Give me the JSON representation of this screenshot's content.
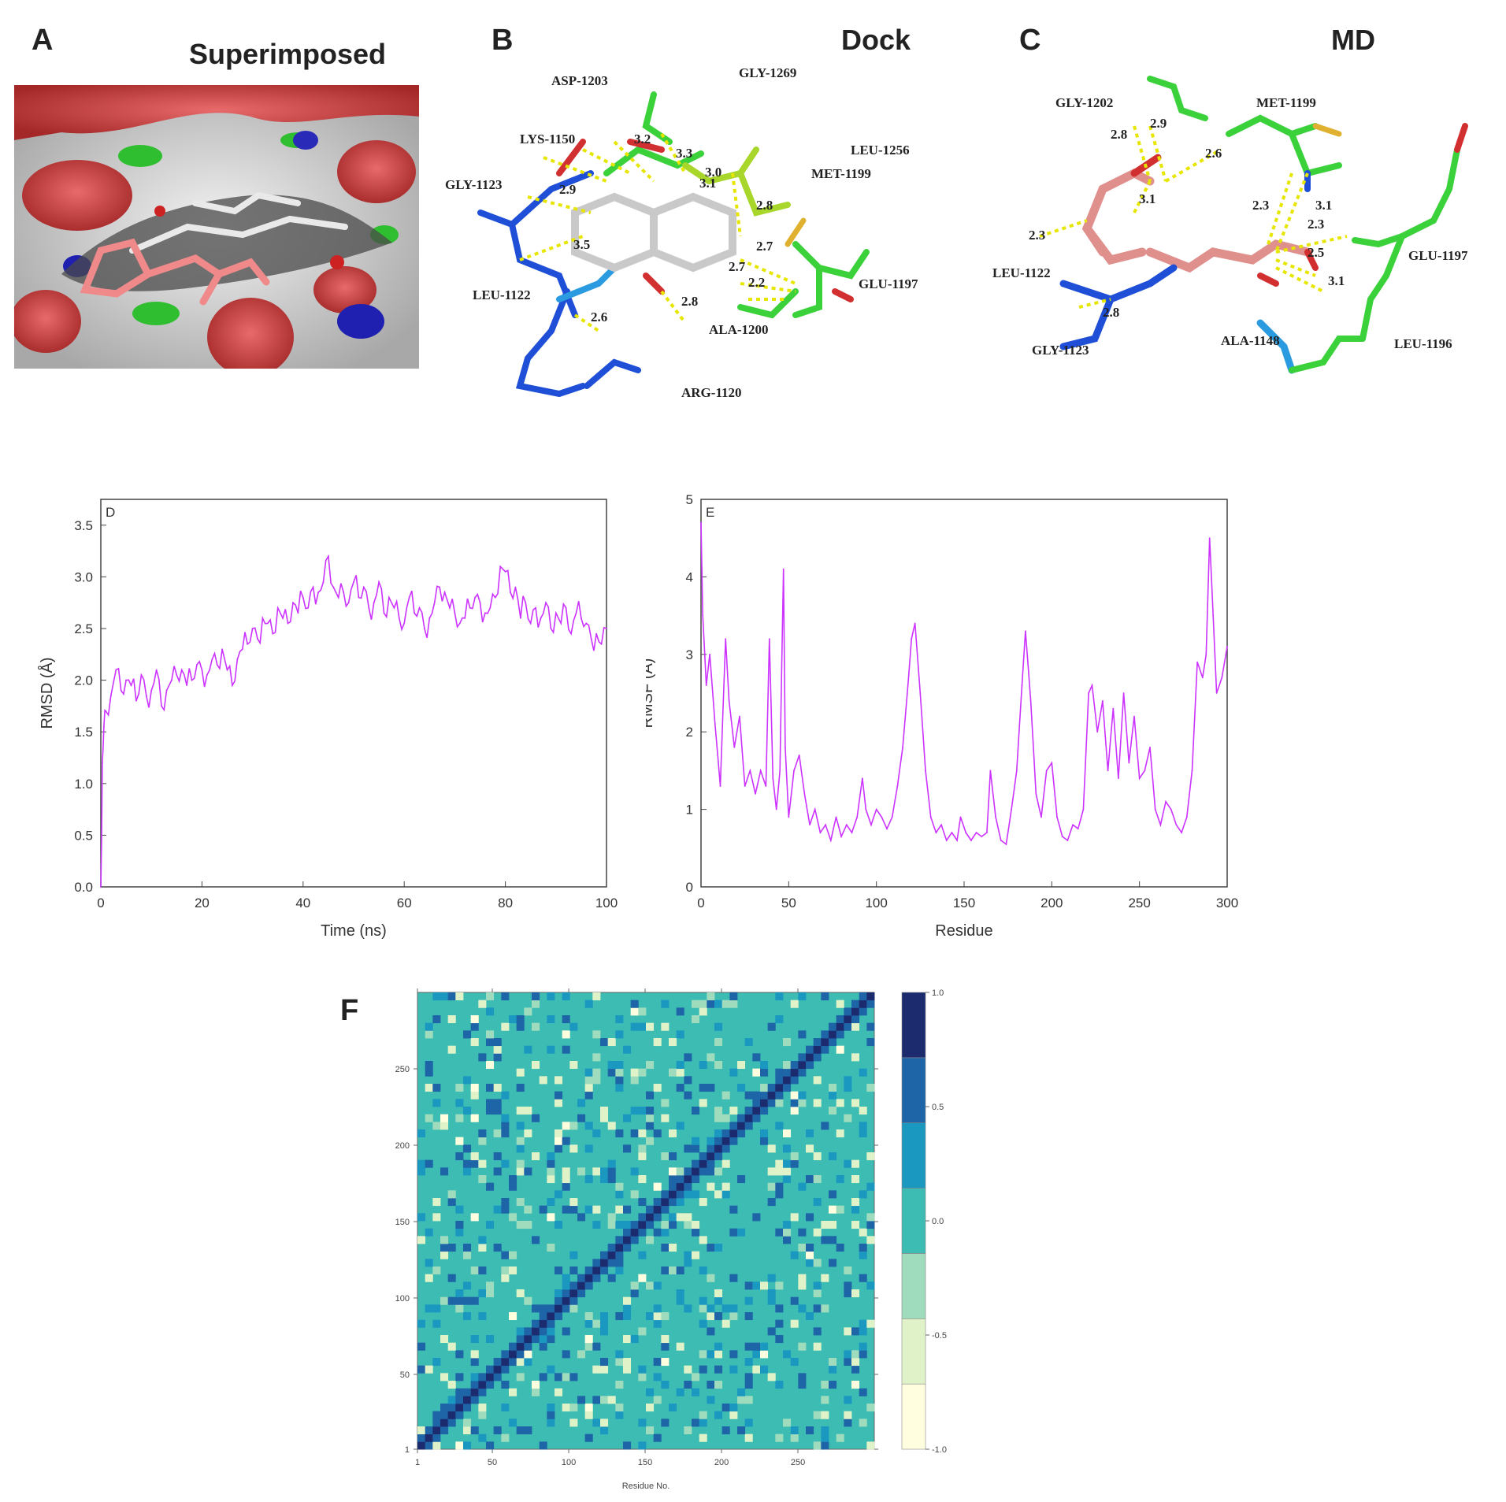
{
  "panels": {
    "a": {
      "letter": "A",
      "title": "Superimposed"
    },
    "b": {
      "letter": "B",
      "title": "Dock",
      "residues": [
        "ASP-1203",
        "GLY-1269",
        "LYS-1150",
        "LEU-1256",
        "GLY-1123",
        "MET-1199",
        "LEU-1122",
        "GLU-1197",
        "ALA-1200",
        "ARG-1120"
      ],
      "distances": [
        "3.2",
        "3.3",
        "3.0",
        "3.1",
        "2.9",
        "2.8",
        "3.5",
        "2.7",
        "2.7",
        "2.2",
        "2.8",
        "2.6"
      ]
    },
    "c": {
      "letter": "C",
      "title": "MD",
      "residues": [
        "GLY-1202",
        "MET-1199",
        "GLU-1197",
        "LEU-1122",
        "GLY-1123",
        "ALA-1148",
        "LEU-1196"
      ],
      "distances": [
        "2.8",
        "2.9",
        "2.6",
        "3.1",
        "2.3",
        "2.3",
        "3.1",
        "2.3",
        "2.5",
        "3.1",
        "2.8"
      ]
    },
    "f": {
      "letter": "F"
    }
  },
  "chart_data": [
    {
      "type": "line",
      "panel": "D",
      "xlabel": "Time (ns)",
      "ylabel": "RMSD (Å)",
      "xlim": [
        0,
        100
      ],
      "ylim": [
        0,
        3.75
      ],
      "xticks": [
        "0",
        "20",
        "40",
        "60",
        "80",
        "100"
      ],
      "yticks": [
        "0.0",
        "0.5",
        "1.0",
        "1.5",
        "2.0",
        "2.5",
        "3.0",
        "3.5"
      ],
      "color": "#cc33ff",
      "x": [
        0,
        0.3,
        0.6,
        1,
        2,
        3,
        4,
        5,
        6,
        7,
        8,
        9,
        10,
        11,
        12,
        13,
        14,
        15,
        16,
        17,
        18,
        19,
        20,
        21,
        22,
        23,
        24,
        25,
        26,
        27,
        28,
        29,
        30,
        31,
        32,
        33,
        34,
        35,
        36,
        37,
        38,
        39,
        40,
        41,
        42,
        43,
        44,
        45,
        46,
        47,
        48,
        49,
        50,
        51,
        52,
        53,
        54,
        55,
        56,
        57,
        58,
        59,
        60,
        61,
        62,
        63,
        64,
        65,
        66,
        67,
        68,
        69,
        70,
        71,
        72,
        73,
        74,
        75,
        76,
        77,
        78,
        79,
        80,
        81,
        82,
        83,
        84,
        85,
        86,
        87,
        88,
        89,
        90,
        91,
        92,
        93,
        94,
        95,
        96,
        97,
        98,
        99,
        100
      ],
      "values": [
        0.0,
        1.2,
        1.55,
        1.7,
        1.85,
        2.1,
        1.9,
        2.0,
        1.95,
        1.8,
        2.05,
        1.85,
        1.9,
        2.1,
        1.75,
        1.9,
        2.0,
        2.05,
        2.1,
        1.95,
        2.0,
        2.15,
        2.1,
        2.05,
        2.2,
        2.15,
        2.3,
        2.1,
        1.95,
        2.2,
        2.3,
        2.35,
        2.5,
        2.4,
        2.6,
        2.55,
        2.45,
        2.7,
        2.6,
        2.55,
        2.75,
        2.65,
        2.8,
        2.7,
        2.9,
        2.85,
        2.95,
        3.2,
        2.9,
        2.8,
        2.85,
        2.75,
        2.95,
        2.8,
        2.9,
        2.7,
        2.75,
        2.95,
        2.65,
        2.8,
        2.7,
        2.6,
        2.55,
        2.8,
        2.65,
        2.7,
        2.5,
        2.6,
        2.75,
        2.9,
        2.85,
        2.7,
        2.65,
        2.55,
        2.6,
        2.7,
        2.8,
        2.75,
        2.65,
        2.7,
        2.8,
        3.1,
        3.05,
        2.85,
        2.9,
        2.6,
        2.75,
        2.55,
        2.7,
        2.6,
        2.75,
        2.5,
        2.65,
        2.55,
        2.7,
        2.45,
        2.65,
        2.6,
        2.55,
        2.4,
        2.45,
        2.35,
        2.5
      ]
    },
    {
      "type": "line",
      "panel": "E",
      "xlabel": "Residue",
      "ylabel": "RMSF (Å)",
      "xlim": [
        0,
        300
      ],
      "ylim": [
        0,
        5
      ],
      "xticks": [
        "0",
        "50",
        "100",
        "150",
        "200",
        "250",
        "300"
      ],
      "yticks": [
        "0",
        "1",
        "2",
        "3",
        "4",
        "5"
      ],
      "color": "#cc33ff",
      "x": [
        0,
        1,
        3,
        5,
        8,
        11,
        14,
        16,
        19,
        22,
        25,
        28,
        31,
        34,
        37,
        39,
        41,
        43,
        45,
        47,
        48,
        50,
        53,
        56,
        59,
        62,
        65,
        68,
        71,
        74,
        77,
        80,
        83,
        86,
        89,
        92,
        94,
        97,
        100,
        103,
        106,
        109,
        112,
        115,
        118,
        120,
        122,
        125,
        128,
        131,
        134,
        137,
        140,
        143,
        146,
        148,
        151,
        154,
        157,
        160,
        163,
        165,
        168,
        171,
        174,
        177,
        180,
        183,
        185,
        188,
        191,
        194,
        197,
        200,
        203,
        206,
        209,
        212,
        215,
        218,
        221,
        223,
        226,
        229,
        232,
        235,
        238,
        241,
        244,
        247,
        250,
        253,
        256,
        259,
        262,
        265,
        268,
        271,
        274,
        277,
        280,
        283,
        286,
        288,
        290,
        292,
        294,
        297,
        300
      ],
      "values": [
        4.7,
        3.5,
        2.6,
        3.0,
        2.1,
        1.3,
        3.2,
        2.4,
        1.8,
        2.2,
        1.3,
        1.5,
        1.2,
        1.5,
        1.3,
        3.2,
        1.4,
        1.0,
        1.5,
        4.1,
        1.8,
        0.9,
        1.5,
        1.7,
        1.2,
        0.8,
        1.0,
        0.7,
        0.8,
        0.6,
        0.9,
        0.65,
        0.8,
        0.7,
        0.9,
        1.4,
        1.0,
        0.8,
        1.0,
        0.9,
        0.75,
        0.9,
        1.3,
        1.8,
        2.6,
        3.2,
        3.4,
        2.5,
        1.5,
        0.9,
        0.7,
        0.8,
        0.6,
        0.7,
        0.6,
        0.9,
        0.7,
        0.6,
        0.7,
        0.65,
        0.7,
        1.5,
        0.9,
        0.6,
        0.55,
        1.0,
        1.5,
        2.6,
        3.3,
        2.4,
        1.2,
        0.9,
        1.5,
        1.6,
        0.9,
        0.65,
        0.6,
        0.8,
        0.75,
        1.0,
        2.5,
        2.6,
        2.0,
        2.4,
        1.5,
        2.3,
        1.4,
        2.5,
        1.6,
        2.2,
        1.4,
        1.5,
        1.8,
        1.0,
        0.8,
        1.1,
        1.0,
        0.8,
        0.7,
        0.9,
        1.5,
        2.9,
        2.7,
        3.0,
        4.5,
        3.5,
        2.5,
        2.7,
        3.1
      ]
    },
    {
      "type": "heatmap",
      "panel": "F",
      "xlabel": "Residue No.",
      "ylabel": "",
      "xlim": [
        1,
        300
      ],
      "ylim": [
        1,
        300
      ],
      "xticks": [
        "1",
        "50",
        "100",
        "150",
        "200",
        "250"
      ],
      "yticks": [
        "1",
        "50",
        "100",
        "150",
        "200",
        "250"
      ],
      "colorbar": {
        "min": -1.0,
        "max": 1.0,
        "ticks": [
          "-1.0",
          "-0.5",
          "0.0",
          "0.5",
          "1.0"
        ],
        "levels": [
          "#ffffe0",
          "#e0f3c8",
          "#9fdcbd",
          "#3cbcb3",
          "#1b98c0",
          "#1e65a8",
          "#1c2a6e"
        ]
      }
    }
  ]
}
